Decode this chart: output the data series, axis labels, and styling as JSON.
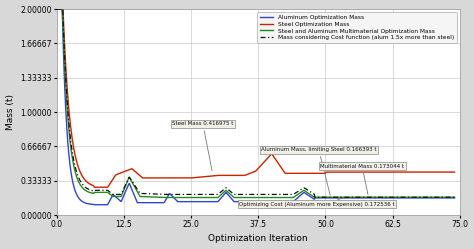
{
  "title": "",
  "xlabel": "Optimization Iteration",
  "ylabel": "Mass (t)",
  "xlim": [
    0,
    75
  ],
  "ylim": [
    0.0,
    2.0
  ],
  "yticks": [
    0.0,
    0.33333,
    0.66667,
    1.0,
    1.33333,
    1.66667,
    2.0
  ],
  "ytick_labels": [
    "0.00000",
    "0.33333",
    "0.66667",
    "1.00000",
    "1.33333",
    "1.66667",
    "2.00000"
  ],
  "xticks": [
    0.0,
    12.5,
    25.0,
    37.5,
    50.0,
    62.5,
    75.0
  ],
  "xtick_labels": [
    "0.0",
    "12.5",
    "25.0",
    "37.5",
    "50.0",
    "62.5",
    "75.0"
  ],
  "legend_entries": [
    "Aluminum Optimization Mass",
    "Steel Optimization Mass",
    "Steel and Aluminum Multimaterial Optimization Mass",
    "Mass considering Cost function (alum 1.5x more than steel)"
  ],
  "line_colors": [
    "#3344CC",
    "#CC2200",
    "#228B22",
    "#111111"
  ],
  "fig_bg": "#d8d8d8",
  "plot_bg": "#ffffff",
  "grid_color": "#cccccc"
}
